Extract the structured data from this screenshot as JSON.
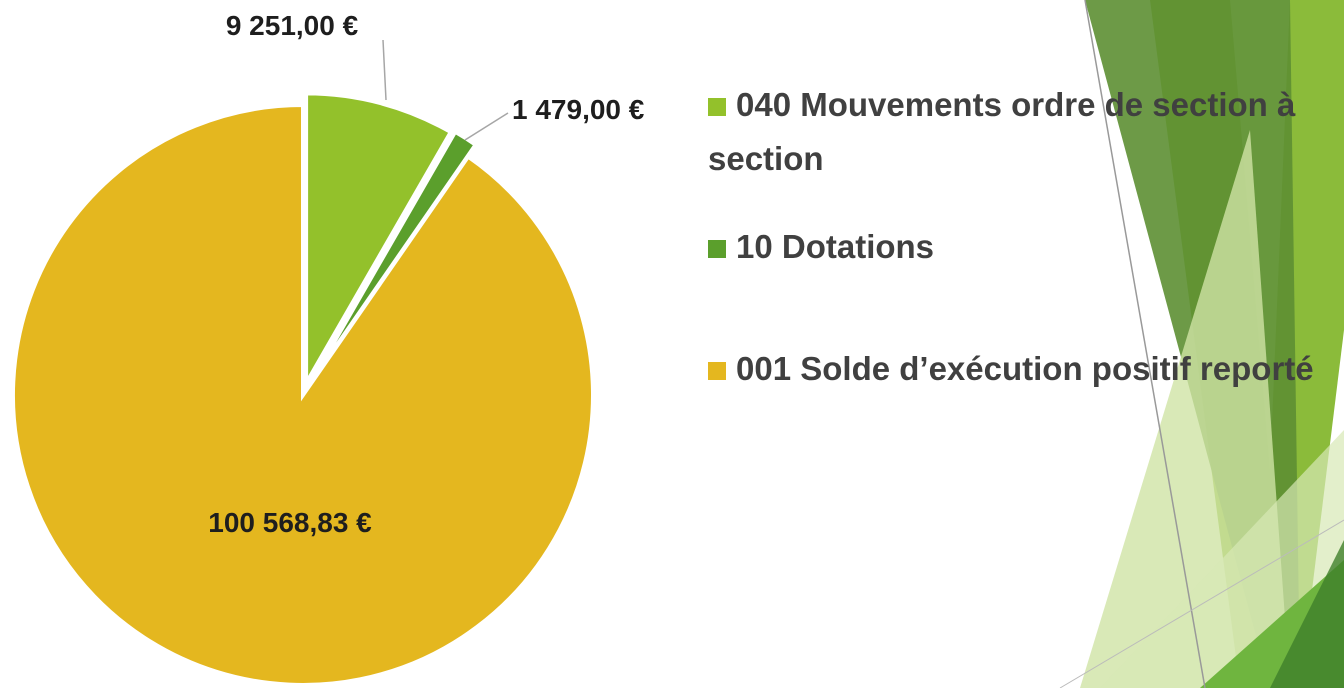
{
  "chart_data": {
    "type": "pie",
    "categories": [
      "040 Mouvements ordre de section à section",
      "10 Dotations",
      "001 Solde d’exécution positif reporté"
    ],
    "values": [
      9251,
      1479,
      100568.83
    ],
    "value_labels": [
      "9 251,00 €",
      "1 479,00 €",
      "100 568,83 €"
    ],
    "colors": [
      "#93c12b",
      "#5b9f2c",
      "#e4b71f"
    ],
    "legend": "right"
  }
}
